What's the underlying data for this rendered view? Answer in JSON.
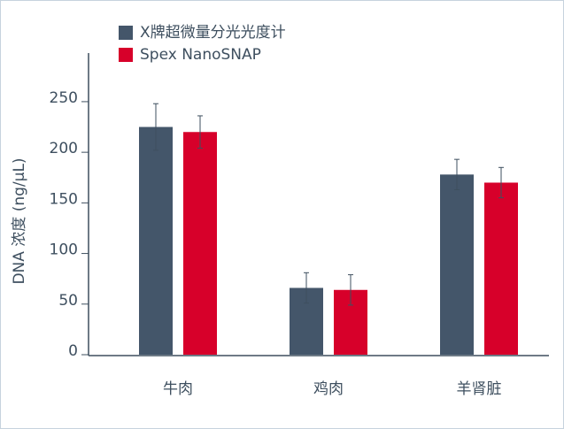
{
  "chart_data": {
    "type": "bar",
    "ylabel": "DNA 浓度 (ng/μL)",
    "categories": [
      "牛肉",
      "鸡肉",
      "羊肾脏"
    ],
    "series": [
      {
        "name": "X牌超微量分光光度计",
        "color": "#44566a",
        "values": [
          225,
          66,
          178
        ],
        "errors": [
          23,
          15,
          15
        ]
      },
      {
        "name": "Spex NanoSNAP",
        "color": "#d7002a",
        "values": [
          220,
          64,
          170
        ],
        "errors": [
          16,
          15,
          15
        ]
      }
    ],
    "ylim": [
      0,
      298
    ],
    "yticks": [
      0,
      50,
      100,
      150,
      200,
      250
    ]
  }
}
